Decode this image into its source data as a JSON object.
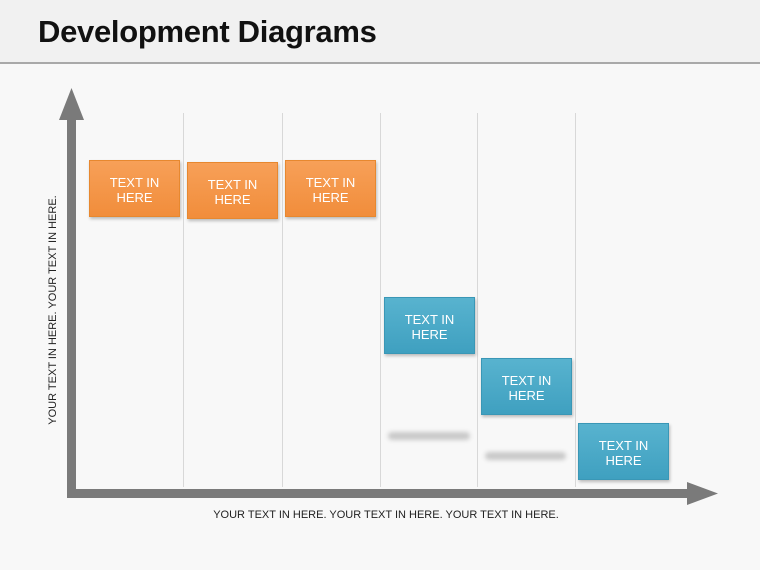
{
  "header": {
    "title": "Development Diagrams"
  },
  "diagram": {
    "y_axis_label": "YOUR TEXT IN HERE. YOUR TEXT IN HERE.",
    "x_axis_label": "YOUR TEXT IN HERE. YOUR TEXT IN HERE. YOUR TEXT IN HERE.",
    "colors": {
      "orange": "#f29443",
      "blue": "#48a8c6",
      "axis": "#7a7a7a"
    },
    "steps": [
      {
        "label": "TEXT IN HERE",
        "color": "orange"
      },
      {
        "label": "TEXT IN HERE",
        "color": "orange"
      },
      {
        "label": "TEXT IN HERE",
        "color": "orange"
      },
      {
        "label": "TEXT IN HERE",
        "color": "blue"
      },
      {
        "label": "TEXT IN HERE",
        "color": "blue"
      },
      {
        "label": "TEXT IN HERE",
        "color": "blue"
      }
    ]
  }
}
